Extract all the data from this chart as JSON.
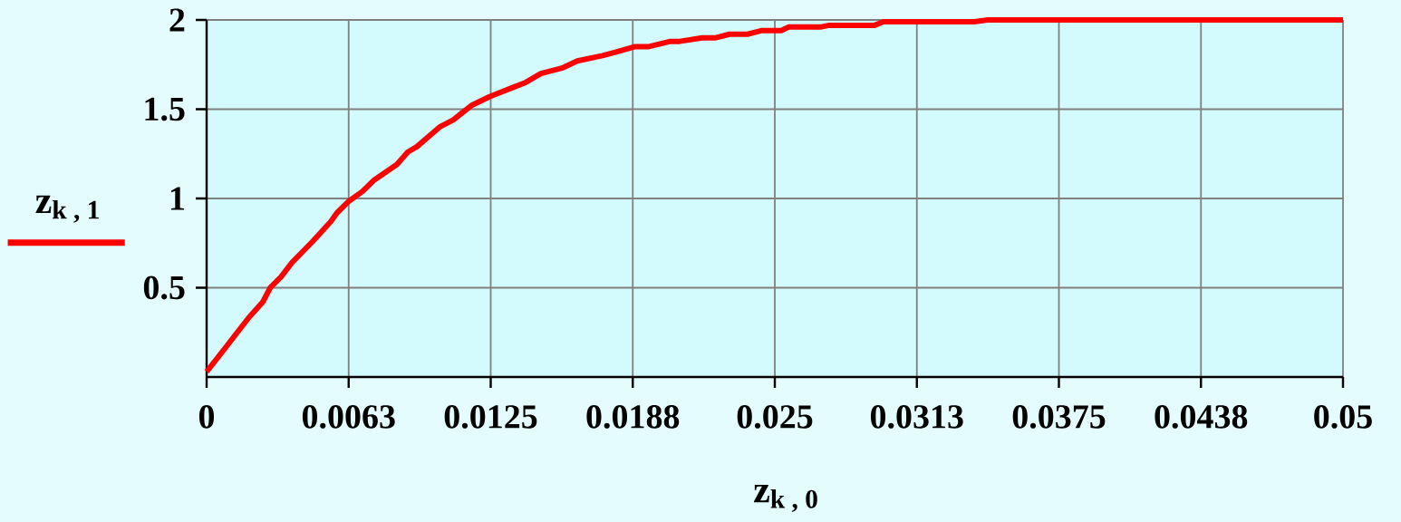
{
  "chart_data": {
    "type": "line",
    "xlabel": "z$_{k , 0}$",
    "ylabel": "z$_{k , 1}$",
    "xlim": [
      0,
      0.05
    ],
    "ylim": [
      0,
      2
    ],
    "xticks": [
      0,
      {
        "value": 0.00625,
        "label": "0.0063"
      },
      0.0125,
      {
        "value": 0.01875,
        "label": "0.0188"
      },
      0.025,
      {
        "value": 0.03125,
        "label": "0.0313"
      },
      0.0375,
      {
        "value": 0.04375,
        "label": "0.0438"
      },
      0.05
    ],
    "yticks": [
      0.5,
      1,
      1.5,
      2
    ],
    "grid": true,
    "series": [
      {
        "color": "#ff0000",
        "x": [
          0,
          0.00048,
          0.00187,
          0.00247,
          0.0028,
          0.00327,
          0.00375,
          0.00467,
          0.00546,
          0.00574,
          0.00626,
          0.00686,
          0.00734,
          0.00837,
          0.00885,
          0.00925,
          0.01025,
          0.01085,
          0.01164,
          0.01244,
          0.01344,
          0.01404,
          0.01471,
          0.01563,
          0.01631,
          0.01742,
          0.01802,
          0.01882,
          0.01942,
          0.02041,
          0.02081,
          0.02181,
          0.02241,
          0.02301,
          0.0238,
          0.0244,
          0.02528,
          0.0256,
          0.027,
          0.0274,
          0.02939,
          0.02978,
          0.03377,
          0.03437,
          0.05
        ],
        "values": [
          0.03,
          0.107,
          0.335,
          0.42,
          0.5,
          0.56,
          0.64,
          0.76,
          0.87,
          0.92,
          0.985,
          1.04,
          1.1,
          1.19,
          1.26,
          1.29,
          1.4,
          1.44,
          1.52,
          1.57,
          1.62,
          1.65,
          1.7,
          1.73,
          1.77,
          1.8,
          1.82,
          1.85,
          1.85,
          1.88,
          1.88,
          1.9,
          1.9,
          1.92,
          1.92,
          1.94,
          1.94,
          1.96,
          1.96,
          1.97,
          1.97,
          1.99,
          1.99,
          2.0,
          2.0
        ]
      }
    ]
  }
}
